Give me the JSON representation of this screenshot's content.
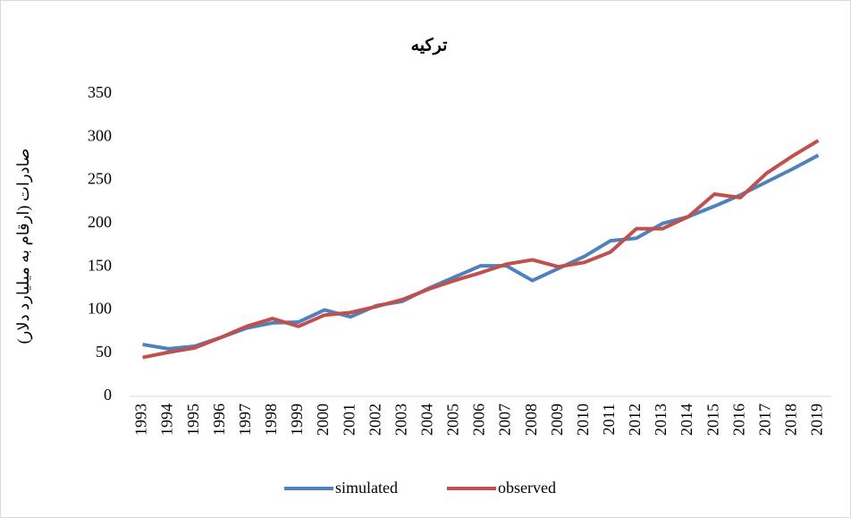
{
  "chart_data": {
    "type": "line",
    "title": "ترکیه",
    "y_label": "صادرات (ارقام به میلیارد دلار)",
    "categories": [
      "1993",
      "1994",
      "1995",
      "1996",
      "1997",
      "1998",
      "1999",
      "2000",
      "2001",
      "2002",
      "2003",
      "2004",
      "2005",
      "2006",
      "2007",
      "2008",
      "2009",
      "2010",
      "2011",
      "2012",
      "2013",
      "2014",
      "2015",
      "2016",
      "2017",
      "2018",
      "2019"
    ],
    "series": [
      {
        "name": "simulated",
        "color": "#4f81bd",
        "values": [
          60,
          55,
          58,
          68,
          79,
          85,
          86,
          100,
          92,
          105,
          110,
          125,
          138,
          151,
          151,
          134,
          148,
          162,
          180,
          183,
          200,
          208,
          220,
          233,
          248,
          263,
          279
        ]
      },
      {
        "name": "observed",
        "color": "#c0504d",
        "values": [
          45,
          51,
          56,
          68,
          81,
          90,
          81,
          94,
          97,
          104,
          112,
          124,
          134,
          143,
          153,
          158,
          150,
          155,
          167,
          194,
          194,
          208,
          234,
          230,
          258,
          278,
          296
        ]
      }
    ],
    "ylim": [
      0,
      350
    ],
    "yticks": [
      0,
      50,
      100,
      150,
      200,
      250,
      300,
      350
    ],
    "grid": false,
    "legend": "bottom"
  }
}
